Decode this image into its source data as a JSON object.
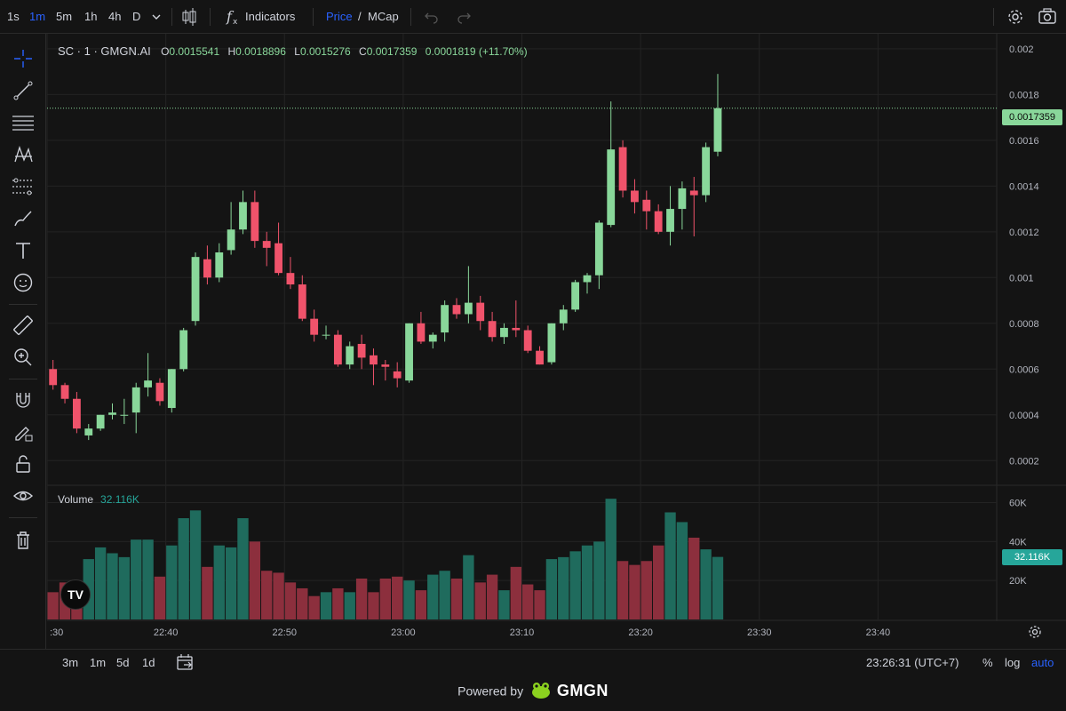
{
  "toolbar": {
    "intervals": [
      "1s",
      "1m",
      "5m",
      "1h",
      "4h",
      "D"
    ],
    "active_interval": "1m",
    "indicators_label": "Indicators",
    "price_label": "Price",
    "slash": "/",
    "mcap_label": "MCap"
  },
  "legend": {
    "symbol": "SC · 1 · GMGN.AI",
    "o_label": "O",
    "o_value": "0.0015541",
    "h_label": "H",
    "h_value": "0.0018896",
    "l_label": "L",
    "l_value": "0.0015276",
    "c_label": "C",
    "c_value": "0.0017359",
    "change": "0.0001819 (+11.70%)"
  },
  "volume_legend": {
    "label": "Volume",
    "value": "32.116K"
  },
  "last_price_tag": "0.0017359",
  "last_volume_tag": "32.116K",
  "bottom": {
    "ranges": [
      "3m",
      "1m",
      "5d",
      "1d"
    ],
    "clock": "23:26:31 (UTC+7)",
    "percent_label": "%",
    "log_label": "log",
    "auto_label": "auto"
  },
  "footer": {
    "powered_by": "Powered by",
    "brand": "GMGN"
  },
  "tv_logo": "TV",
  "colors": {
    "up": "#89d79a",
    "down": "#f0536b",
    "vol_up": "#1f6b5d",
    "vol_down": "#8c2f3d",
    "accent": "#2962ff",
    "bg": "#141414",
    "grid": "#232323"
  },
  "chart_data": {
    "type": "candlestick",
    "title": "SC · 1 · GMGN.AI",
    "interval": "1m",
    "price_axis": {
      "ticks": [
        "0.0002",
        "0.0004",
        "0.0006",
        "0.0008",
        "0.001",
        "0.0012",
        "0.0014",
        "0.0016",
        "0.0018",
        "0.002"
      ],
      "range": [
        0.0001,
        0.00205
      ]
    },
    "volume_axis": {
      "ticks": [
        "20K",
        "40K",
        "60K"
      ],
      "range": [
        0,
        68000
      ]
    },
    "time_axis": {
      "ticks": [
        ":30",
        "22:40",
        "22:50",
        "23:00",
        "23:10",
        "23:20",
        "23:30",
        "23:40"
      ],
      "start_minute": -8,
      "end_minute": 72
    },
    "candles": [
      {
        "o": 0.0006,
        "h": 0.00064,
        "l": 0.00051,
        "c": 0.00053,
        "v": 14000
      },
      {
        "o": 0.00053,
        "h": 0.00054,
        "l": 0.00045,
        "c": 0.00047,
        "v": 19000
      },
      {
        "o": 0.00047,
        "h": 0.0005,
        "l": 0.00032,
        "c": 0.00034,
        "v": 11000
      },
      {
        "o": 0.00031,
        "h": 0.00036,
        "l": 0.00029,
        "c": 0.00034,
        "v": 31000
      },
      {
        "o": 0.00034,
        "h": 0.0004,
        "l": 0.00033,
        "c": 0.0004,
        "v": 37000
      },
      {
        "o": 0.0004,
        "h": 0.00045,
        "l": 0.00038,
        "c": 0.00041,
        "v": 34000
      },
      {
        "o": 0.0004,
        "h": 0.00047,
        "l": 0.00036,
        "c": 0.0004,
        "v": 32000
      },
      {
        "o": 0.00041,
        "h": 0.00054,
        "l": 0.00032,
        "c": 0.00052,
        "v": 41000
      },
      {
        "o": 0.00052,
        "h": 0.00067,
        "l": 0.00048,
        "c": 0.00055,
        "v": 41000
      },
      {
        "o": 0.00054,
        "h": 0.00056,
        "l": 0.00044,
        "c": 0.00046,
        "v": 22000
      },
      {
        "o": 0.00043,
        "h": 0.0006,
        "l": 0.00041,
        "c": 0.0006,
        "v": 38000
      },
      {
        "o": 0.0006,
        "h": 0.00078,
        "l": 0.00059,
        "c": 0.00077,
        "v": 52000
      },
      {
        "o": 0.00081,
        "h": 0.00111,
        "l": 0.00079,
        "c": 0.00109,
        "v": 56000
      },
      {
        "o": 0.00108,
        "h": 0.00114,
        "l": 0.00097,
        "c": 0.001,
        "v": 27000
      },
      {
        "o": 0.001,
        "h": 0.00115,
        "l": 0.00098,
        "c": 0.00111,
        "v": 38000
      },
      {
        "o": 0.00112,
        "h": 0.00133,
        "l": 0.0011,
        "c": 0.00121,
        "v": 37000
      },
      {
        "o": 0.00121,
        "h": 0.00138,
        "l": 0.00119,
        "c": 0.00133,
        "v": 52000
      },
      {
        "o": 0.00133,
        "h": 0.00138,
        "l": 0.00113,
        "c": 0.00116,
        "v": 40000
      },
      {
        "o": 0.00116,
        "h": 0.0012,
        "l": 0.00105,
        "c": 0.00113,
        "v": 25000
      },
      {
        "o": 0.00115,
        "h": 0.00124,
        "l": 0.00101,
        "c": 0.00102,
        "v": 24000
      },
      {
        "o": 0.00102,
        "h": 0.00109,
        "l": 0.00095,
        "c": 0.00097,
        "v": 19000
      },
      {
        "o": 0.00097,
        "h": 0.00101,
        "l": 0.00081,
        "c": 0.00082,
        "v": 16000
      },
      {
        "o": 0.00082,
        "h": 0.00086,
        "l": 0.00072,
        "c": 0.00075,
        "v": 12000
      },
      {
        "o": 0.00075,
        "h": 0.00079,
        "l": 0.00073,
        "c": 0.00075,
        "v": 14000
      },
      {
        "o": 0.00075,
        "h": 0.00077,
        "l": 0.00061,
        "c": 0.00062,
        "v": 16000
      },
      {
        "o": 0.00062,
        "h": 0.00072,
        "l": 0.0006,
        "c": 0.0007,
        "v": 14000
      },
      {
        "o": 0.00071,
        "h": 0.00075,
        "l": 0.0006,
        "c": 0.00065,
        "v": 21000
      },
      {
        "o": 0.00066,
        "h": 0.00069,
        "l": 0.00053,
        "c": 0.00062,
        "v": 14000
      },
      {
        "o": 0.00062,
        "h": 0.00064,
        "l": 0.00055,
        "c": 0.00061,
        "v": 21000
      },
      {
        "o": 0.00059,
        "h": 0.00063,
        "l": 0.00052,
        "c": 0.00056,
        "v": 22000
      },
      {
        "o": 0.00055,
        "h": 0.0008,
        "l": 0.00054,
        "c": 0.0008,
        "v": 20000
      },
      {
        "o": 0.0008,
        "h": 0.00085,
        "l": 0.00071,
        "c": 0.00072,
        "v": 15000
      },
      {
        "o": 0.00072,
        "h": 0.00076,
        "l": 0.00069,
        "c": 0.00075,
        "v": 23000
      },
      {
        "o": 0.00076,
        "h": 0.0009,
        "l": 0.00072,
        "c": 0.00088,
        "v": 25000
      },
      {
        "o": 0.00088,
        "h": 0.00091,
        "l": 0.00082,
        "c": 0.00084,
        "v": 21000
      },
      {
        "o": 0.00084,
        "h": 0.00105,
        "l": 0.0008,
        "c": 0.00089,
        "v": 33000
      },
      {
        "o": 0.00089,
        "h": 0.00092,
        "l": 0.00077,
        "c": 0.00081,
        "v": 19000
      },
      {
        "o": 0.00081,
        "h": 0.00085,
        "l": 0.00072,
        "c": 0.00074,
        "v": 23000
      },
      {
        "o": 0.00074,
        "h": 0.0008,
        "l": 0.00071,
        "c": 0.00078,
        "v": 15000
      },
      {
        "o": 0.00078,
        "h": 0.0009,
        "l": 0.00074,
        "c": 0.00077,
        "v": 27000
      },
      {
        "o": 0.00077,
        "h": 0.00079,
        "l": 0.00067,
        "c": 0.00068,
        "v": 18000
      },
      {
        "o": 0.00068,
        "h": 0.0007,
        "l": 0.00062,
        "c": 0.00062,
        "v": 15000
      },
      {
        "o": 0.00063,
        "h": 0.0008,
        "l": 0.00062,
        "c": 0.0008,
        "v": 31000
      },
      {
        "o": 0.0008,
        "h": 0.00088,
        "l": 0.00077,
        "c": 0.00086,
        "v": 32000
      },
      {
        "o": 0.00086,
        "h": 0.00099,
        "l": 0.00085,
        "c": 0.00098,
        "v": 35000
      },
      {
        "o": 0.00098,
        "h": 0.00102,
        "l": 0.00093,
        "c": 0.00101,
        "v": 38000
      },
      {
        "o": 0.00101,
        "h": 0.00125,
        "l": 0.00095,
        "c": 0.00124,
        "v": 40000
      },
      {
        "o": 0.00123,
        "h": 0.00177,
        "l": 0.00122,
        "c": 0.00156,
        "v": 62000
      },
      {
        "o": 0.00157,
        "h": 0.0016,
        "l": 0.00135,
        "c": 0.00138,
        "v": 30000
      },
      {
        "o": 0.00138,
        "h": 0.00143,
        "l": 0.00128,
        "c": 0.00133,
        "v": 28000
      },
      {
        "o": 0.00134,
        "h": 0.00138,
        "l": 0.00121,
        "c": 0.00129,
        "v": 30000
      },
      {
        "o": 0.00129,
        "h": 0.00132,
        "l": 0.00119,
        "c": 0.0012,
        "v": 38000
      },
      {
        "o": 0.0012,
        "h": 0.0014,
        "l": 0.00114,
        "c": 0.0013,
        "v": 55000
      },
      {
        "o": 0.0013,
        "h": 0.00142,
        "l": 0.00121,
        "c": 0.00139,
        "v": 50000
      },
      {
        "o": 0.00138,
        "h": 0.00144,
        "l": 0.00118,
        "c": 0.00136,
        "v": 42000
      },
      {
        "o": 0.00136,
        "h": 0.00159,
        "l": 0.00133,
        "c": 0.00157,
        "v": 36000
      },
      {
        "o": 0.00155,
        "h": 0.00189,
        "l": 0.00153,
        "c": 0.00174,
        "v": 32116
      }
    ]
  }
}
